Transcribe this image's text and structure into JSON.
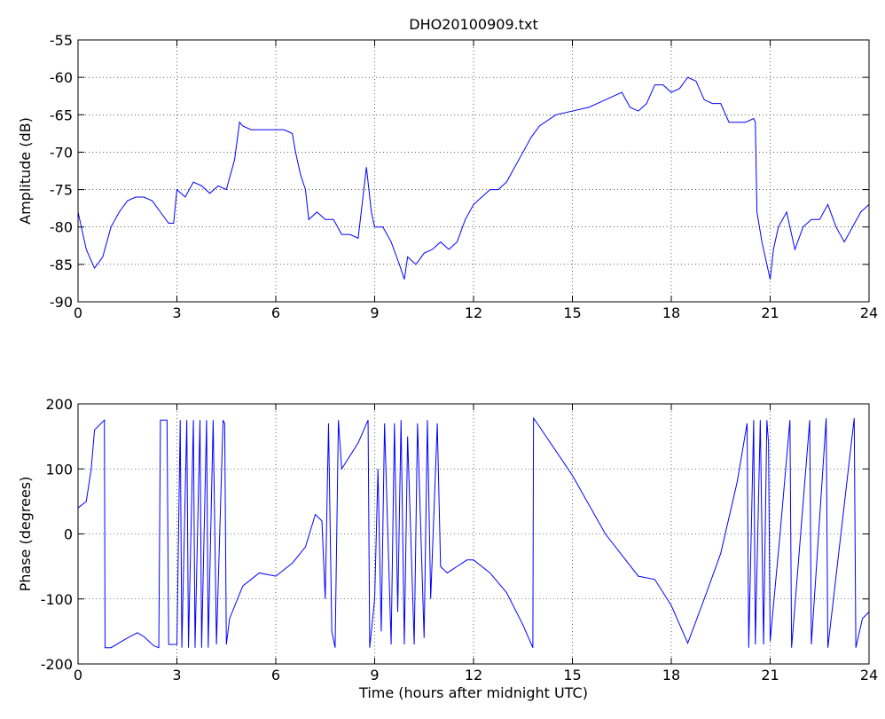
{
  "chart_data": [
    {
      "type": "line",
      "title": "DHO20100909.txt",
      "y_label": "Amplitude (dB)",
      "xlim": [
        0,
        24
      ],
      "xticks": [
        0,
        3,
        6,
        9,
        12,
        15,
        18,
        21,
        24
      ],
      "ylim": [
        -90,
        -55
      ],
      "yticks": [
        -90,
        -85,
        -80,
        -75,
        -70,
        -65,
        -60,
        -55
      ],
      "grid": true,
      "series": [
        {
          "color": "#0000ff",
          "x": [
            0,
            0.25,
            0.5,
            0.75,
            1.0,
            1.25,
            1.5,
            1.75,
            2.0,
            2.25,
            2.5,
            2.75,
            2.9,
            3.0,
            3.25,
            3.5,
            3.75,
            4.0,
            4.25,
            4.5,
            4.75,
            4.9,
            5.0,
            5.25,
            5.5,
            5.75,
            6.0,
            6.25,
            6.5,
            6.6,
            6.75,
            6.9,
            7.0,
            7.25,
            7.5,
            7.75,
            8.0,
            8.25,
            8.5,
            8.75,
            8.9,
            9.0,
            9.25,
            9.5,
            9.75,
            9.9,
            10.0,
            10.25,
            10.5,
            10.75,
            11.0,
            11.25,
            11.5,
            11.75,
            12.0,
            12.25,
            12.5,
            12.75,
            13.0,
            13.25,
            13.5,
            13.75,
            14.0,
            14.5,
            15.0,
            15.5,
            16.0,
            16.5,
            16.75,
            17.0,
            17.25,
            17.5,
            17.75,
            18.0,
            18.25,
            18.5,
            18.75,
            19.0,
            19.25,
            19.5,
            19.75,
            20.0,
            20.25,
            20.5,
            20.55,
            20.6,
            20.75,
            20.9,
            21.0,
            21.1,
            21.25,
            21.5,
            21.75,
            22.0,
            22.25,
            22.5,
            22.75,
            23.0,
            23.25,
            23.5,
            23.75,
            24
          ],
          "values": [
            -78,
            -83,
            -85.5,
            -84,
            -80,
            -78,
            -76.5,
            -76,
            -76,
            -76.5,
            -78,
            -79.5,
            -79.5,
            -75,
            -76,
            -74,
            -74.5,
            -75.5,
            -74.5,
            -75,
            -71,
            -66,
            -66.5,
            -67,
            -67,
            -67,
            -67,
            -67,
            -67.5,
            -70,
            -73,
            -75,
            -79,
            -78,
            -79,
            -79,
            -81,
            -81,
            -81.5,
            -72,
            -78,
            -80,
            -80,
            -82,
            -85,
            -87,
            -84,
            -85,
            -83.5,
            -83,
            -82,
            -83,
            -82,
            -79,
            -77,
            -76,
            -75,
            -75,
            -74,
            -72,
            -70,
            -68,
            -66.5,
            -65,
            -64.5,
            -64,
            -63,
            -62,
            -64,
            -64.5,
            -63.5,
            -61,
            -61,
            -62,
            -61.5,
            -60,
            -60.5,
            -63,
            -63.5,
            -63.5,
            -66,
            -66,
            -66,
            -65.5,
            -66,
            -78,
            -82,
            -85,
            -87,
            -83,
            -80,
            -78,
            -83,
            -80,
            -79,
            -79,
            -77,
            -80,
            -82,
            -80,
            -78,
            -77
          ]
        }
      ]
    },
    {
      "type": "line",
      "x_label": "Time (hours after midnight UTC)",
      "y_label": "Phase (degrees)",
      "xlim": [
        0,
        24
      ],
      "xticks": [
        0,
        3,
        6,
        9,
        12,
        15,
        18,
        21,
        24
      ],
      "ylim": [
        -200,
        200
      ],
      "yticks": [
        -200,
        -100,
        0,
        100,
        200
      ],
      "grid": true,
      "series": [
        {
          "color": "#0000ff",
          "x": [
            0,
            0.25,
            0.4,
            0.5,
            0.8,
            0.82,
            1.0,
            1.5,
            1.8,
            2.0,
            2.3,
            2.45,
            2.5,
            2.7,
            2.75,
            3.0,
            3.1,
            3.15,
            3.3,
            3.35,
            3.5,
            3.55,
            3.7,
            3.75,
            3.9,
            3.95,
            4.1,
            4.2,
            4.4,
            4.45,
            4.5,
            4.6,
            5.0,
            5.5,
            6.0,
            6.5,
            6.9,
            7.2,
            7.4,
            7.5,
            7.6,
            7.7,
            7.8,
            7.9,
            8.0,
            8.5,
            8.8,
            8.85,
            9.0,
            9.1,
            9.2,
            9.3,
            9.5,
            9.6,
            9.7,
            9.8,
            9.9,
            10.0,
            10.2,
            10.3,
            10.5,
            10.6,
            10.7,
            10.9,
            11.0,
            11.2,
            11.5,
            11.8,
            12.0,
            12.5,
            13.0,
            13.5,
            13.8,
            13.82,
            14.0,
            15.0,
            16.0,
            17.0,
            17.5,
            18.0,
            18.5,
            19.0,
            19.5,
            20.0,
            20.3,
            20.35,
            20.5,
            20.55,
            20.7,
            20.8,
            20.9,
            20.95,
            21.0,
            21.3,
            21.6,
            21.65,
            22.2,
            22.25,
            22.7,
            22.75,
            23.55,
            23.6,
            23.8,
            24
          ],
          "values": [
            40,
            50,
            100,
            160,
            175,
            -175,
            -175,
            -160,
            -152,
            -158,
            -172,
            -175,
            175,
            175,
            -170,
            -170,
            175,
            -175,
            175,
            -175,
            175,
            -175,
            175,
            -175,
            175,
            -175,
            175,
            -170,
            175,
            170,
            -170,
            -130,
            -80,
            -60,
            -65,
            -45,
            -20,
            30,
            20,
            -100,
            170,
            -150,
            -175,
            175,
            100,
            140,
            175,
            -175,
            -100,
            100,
            -150,
            170,
            -170,
            170,
            -120,
            175,
            -170,
            150,
            -170,
            170,
            -160,
            175,
            -100,
            170,
            -50,
            -60,
            -50,
            -40,
            -40,
            -60,
            -90,
            -140,
            -175,
            178,
            165,
            90,
            0,
            -65,
            -70,
            -110,
            -168,
            -100,
            -30,
            80,
            170,
            -175,
            175,
            -170,
            175,
            -170,
            175,
            140,
            -165,
            0,
            175,
            -175,
            175,
            -170,
            178,
            -175,
            178,
            -175,
            -130,
            -120
          ]
        }
      ]
    }
  ]
}
